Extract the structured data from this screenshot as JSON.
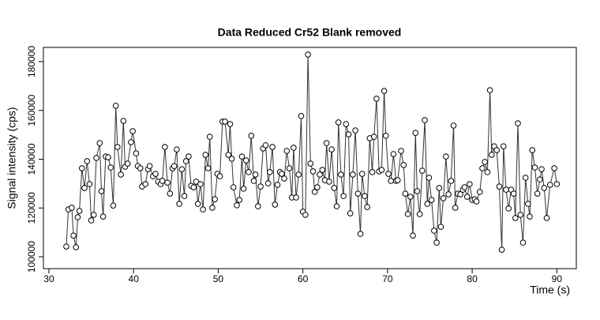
{
  "chart_data": {
    "type": "line",
    "title": "Data Reduced Cr52 Blank removed",
    "x_label": "Time (s)",
    "y_label": "Signal intensity (cps)",
    "color": "#333333",
    "markers": true,
    "xlim": [
      29.35,
      92.3
    ],
    "xticks": [
      30,
      40,
      50,
      60,
      70,
      80,
      90
    ],
    "ylim": [
      95140,
      185830
    ],
    "yticks": [
      100000,
      120000,
      140000,
      160000,
      180000
    ],
    "x": [
      32.05,
      32.3,
      32.7,
      32.9,
      33.2,
      33.4,
      33.6,
      33.9,
      34.2,
      34.5,
      34.8,
      35.0,
      35.3,
      35.6,
      36.0,
      36.2,
      36.4,
      36.7,
      37.0,
      37.3,
      37.6,
      37.9,
      38.1,
      38.5,
      38.8,
      39.0,
      39.3,
      39.7,
      39.9,
      40.3,
      40.5,
      40.8,
      41.0,
      41.4,
      41.7,
      41.9,
      42.3,
      42.6,
      42.9,
      43.2,
      43.4,
      43.7,
      44.0,
      44.3,
      44.6,
      44.8,
      45.1,
      45.4,
      45.7,
      46.0,
      46.2,
      46.5,
      46.8,
      47.1,
      47.4,
      47.6,
      47.9,
      48.2,
      48.5,
      48.8,
      49.0,
      49.3,
      49.6,
      49.9,
      50.2,
      50.5,
      50.8,
      51.2,
      51.4,
      51.6,
      51.8,
      52.2,
      52.5,
      52.8,
      53.0,
      53.3,
      53.6,
      53.9,
      54.2,
      54.4,
      54.7,
      55.0,
      55.3,
      55.6,
      55.9,
      56.1,
      56.4,
      56.7,
      57.0,
      57.3,
      57.5,
      57.8,
      58.1,
      58.4,
      58.7,
      58.9,
      59.2,
      59.5,
      59.8,
      60.0,
      60.3,
      60.6,
      60.9,
      61.2,
      61.4,
      61.7,
      62.0,
      62.3,
      62.6,
      62.8,
      63.1,
      63.4,
      63.7,
      64.0,
      64.2,
      64.5,
      64.8,
      65.1,
      65.4,
      65.6,
      65.9,
      66.2,
      66.5,
      66.8,
      67.0,
      67.3,
      67.6,
      67.9,
      68.2,
      68.4,
      68.7,
      69.0,
      69.3,
      69.6,
      69.8,
      70.1,
      70.4,
      70.7,
      71.0,
      71.2,
      71.6,
      71.9,
      72.1,
      72.4,
      72.7,
      73.0,
      73.3,
      73.5,
      73.8,
      74.1,
      74.4,
      74.7,
      74.9,
      75.2,
      75.5,
      75.8,
      76.1,
      76.3,
      76.6,
      76.9,
      77.2,
      77.5,
      77.8,
      78.0,
      78.3,
      78.6,
      78.9,
      79.1,
      79.4,
      79.7,
      80.0,
      80.3,
      80.5,
      80.9,
      81.2,
      81.5,
      81.8,
      82.1,
      82.3,
      82.6,
      82.9,
      83.2,
      83.5,
      83.7,
      84.0,
      84.3,
      84.6,
      84.9,
      85.1,
      85.4,
      85.7,
      86.0,
      86.3,
      86.6,
      86.8,
      87.1,
      87.4,
      87.7,
      88.0,
      88.2,
      88.5,
      88.8,
      89.2,
      89.7,
      90.0
    ],
    "values": [
      104200,
      119400,
      120100,
      108700,
      103900,
      116200,
      118800,
      136300,
      128200,
      139200,
      129800,
      114900,
      117200,
      140500,
      146600,
      126900,
      116500,
      141100,
      140800,
      136600,
      121000,
      161900,
      145000,
      133700,
      155700,
      136900,
      138200,
      147000,
      151500,
      142400,
      137200,
      136300,
      128800,
      129800,
      135900,
      137200,
      133000,
      134000,
      130800,
      129800,
      131100,
      145000,
      130400,
      125900,
      136300,
      137200,
      144000,
      121700,
      135900,
      124900,
      139200,
      141100,
      129100,
      128500,
      130800,
      121700,
      129800,
      119400,
      141800,
      136300,
      149200,
      120100,
      123600,
      134000,
      133000,
      155400,
      155400,
      141800,
      154400,
      140200,
      128500,
      121100,
      123300,
      141100,
      127900,
      139500,
      134700,
      149600,
      131100,
      133700,
      120700,
      128800,
      144400,
      145700,
      130100,
      134700,
      145000,
      121400,
      129500,
      134700,
      134000,
      132100,
      143400,
      136300,
      124300,
      144700,
      124300,
      133700,
      157700,
      118500,
      117200,
      182900,
      138200,
      135000,
      126600,
      128500,
      133700,
      135600,
      131400,
      146600,
      130800,
      144000,
      128200,
      120700,
      155100,
      133700,
      124900,
      154400,
      150200,
      117800,
      133700,
      151800,
      125900,
      109400,
      134000,
      124900,
      120400,
      148600,
      134700,
      149200,
      164800,
      135000,
      135600,
      168000,
      149600,
      134000,
      131100,
      142100,
      131100,
      131400,
      143400,
      137600,
      125900,
      117500,
      124600,
      108700,
      150800,
      126900,
      117500,
      135300,
      156000,
      121700,
      132400,
      123300,
      110700,
      105800,
      128200,
      112300,
      124000,
      141100,
      125600,
      131100,
      153800,
      120100,
      125900,
      125600,
      127500,
      128500,
      124600,
      129800,
      123300,
      123600,
      122700,
      126600,
      136300,
      138900,
      134700,
      168300,
      141800,
      145300,
      143700,
      128800,
      102900,
      145300,
      127500,
      119800,
      127500,
      125900,
      115900,
      154700,
      117200,
      105800,
      132400,
      121700,
      116500,
      143700,
      136600,
      125900,
      131700,
      135900,
      128200,
      115900,
      129500,
      136300,
      129800
    ]
  }
}
